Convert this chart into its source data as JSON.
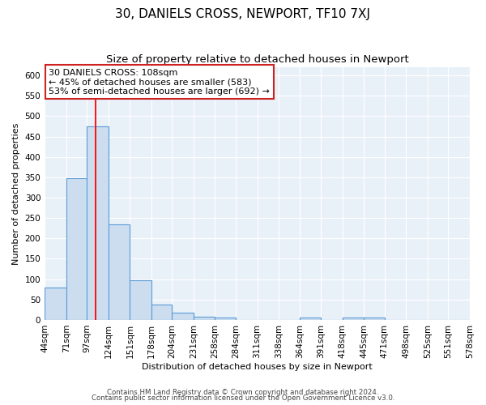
{
  "title": "30, DANIELS CROSS, NEWPORT, TF10 7XJ",
  "subtitle": "Size of property relative to detached houses in Newport",
  "bar_values": [
    80,
    348,
    475,
    235,
    97,
    37,
    18,
    8,
    5,
    0,
    0,
    0,
    6,
    0,
    5,
    5,
    0,
    0,
    0,
    0
  ],
  "bin_edges": [
    44,
    71,
    97,
    124,
    151,
    178,
    204,
    231,
    258,
    284,
    311,
    338,
    364,
    391,
    418,
    445,
    471,
    498,
    525,
    551,
    578
  ],
  "x_labels": [
    "44sqm",
    "71sqm",
    "97sqm",
    "124sqm",
    "151sqm",
    "178sqm",
    "204sqm",
    "231sqm",
    "258sqm",
    "284sqm",
    "311sqm",
    "338sqm",
    "364sqm",
    "391sqm",
    "418sqm",
    "445sqm",
    "471sqm",
    "498sqm",
    "525sqm",
    "551sqm",
    "578sqm"
  ],
  "ylabel": "Number of detached properties",
  "xlabel": "Distribution of detached houses by size in Newport",
  "bar_color": "#ccddf0",
  "bar_edge_color": "#5b9bd5",
  "bg_color": "#e8f0f8",
  "grid_color": "#c8d8e8",
  "red_line_x": 108,
  "annotation_title": "30 DANIELS CROSS: 108sqm",
  "annotation_line1": "← 45% of detached houses are smaller (583)",
  "annotation_line2": "53% of semi-detached houses are larger (692) →",
  "footer1": "Contains HM Land Registry data © Crown copyright and database right 2024.",
  "footer2": "Contains public sector information licensed under the Open Government Licence v3.0.",
  "ylim": [
    0,
    620
  ],
  "yticks": [
    0,
    50,
    100,
    150,
    200,
    250,
    300,
    350,
    400,
    450,
    500,
    550,
    600
  ],
  "title_fontsize": 11,
  "subtitle_fontsize": 9.5
}
